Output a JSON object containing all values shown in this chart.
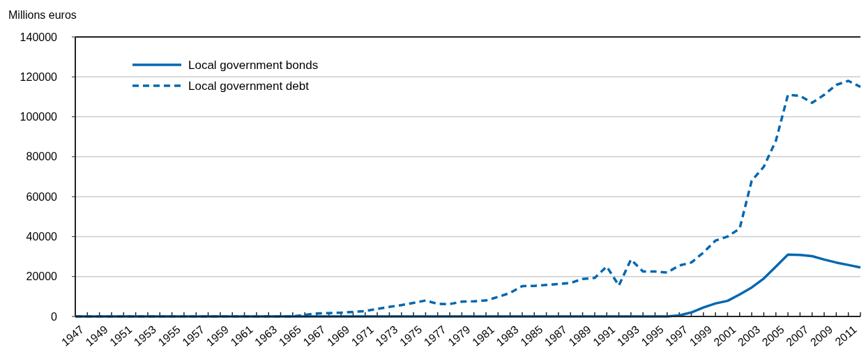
{
  "chart_data": {
    "type": "line",
    "ylabel": "Millions euros",
    "categories": [
      "1947",
      null,
      "1949",
      null,
      "1951",
      null,
      "1953",
      null,
      "1955",
      null,
      "1957",
      null,
      "1959",
      null,
      "1961",
      null,
      "1963",
      null,
      "1965",
      null,
      "1967",
      null,
      "1969",
      null,
      "1971",
      null,
      "1973",
      null,
      "1975",
      null,
      "1977",
      null,
      "1979",
      null,
      "1981",
      null,
      "1983",
      null,
      "1985",
      null,
      "1987",
      null,
      "1989",
      null,
      "1991",
      null,
      "1993",
      null,
      "1995",
      null,
      "1997",
      null,
      "1999",
      null,
      "2001",
      null,
      "2003",
      null,
      "2005",
      null,
      "2007",
      null,
      "2009",
      null,
      "2011",
      null
    ],
    "series": [
      {
        "name": "Local government bonds",
        "color": "#0067b1",
        "line_style": "solid",
        "values": [
          0,
          0,
          0,
          0,
          0,
          0,
          0,
          0,
          0,
          0,
          0,
          0,
          0,
          0,
          0,
          0,
          0,
          0,
          0,
          0,
          0,
          0,
          0,
          0,
          0,
          0,
          0,
          0,
          0,
          0,
          0,
          0,
          0,
          0,
          0,
          0,
          0,
          0,
          0,
          0,
          0,
          0,
          0,
          0,
          0,
          0,
          0,
          0,
          0,
          0,
          500,
          2000,
          4500,
          6500,
          7800,
          11000,
          14500,
          19000,
          25000,
          31000,
          30800,
          30200,
          28500,
          27000,
          25800,
          24500
        ]
      },
      {
        "name": "Local government debt",
        "color": "#0067b1",
        "line_style": "dashed",
        "values": [
          0,
          0,
          0,
          0,
          0,
          0,
          0,
          0,
          0,
          0,
          0,
          0,
          0,
          0,
          0,
          0,
          0,
          0,
          0,
          800,
          1500,
          1700,
          1900,
          2300,
          2700,
          3800,
          4800,
          5700,
          6800,
          8000,
          6300,
          6200,
          7400,
          7600,
          8000,
          9800,
          11800,
          15200,
          15300,
          15800,
          16300,
          16800,
          18800,
          19300,
          25000,
          15500,
          28500,
          22500,
          22500,
          22000,
          25500,
          27000,
          32000,
          38000,
          40000,
          44000,
          68000,
          75000,
          88000,
          111000,
          110500,
          107000,
          111000,
          116000,
          118000,
          115000
        ]
      }
    ],
    "ylim": [
      0,
      140000
    ],
    "yticks": [
      0,
      20000,
      40000,
      60000,
      80000,
      100000,
      120000,
      140000
    ],
    "grid": "y",
    "legend": "top left",
    "marker": "none"
  }
}
